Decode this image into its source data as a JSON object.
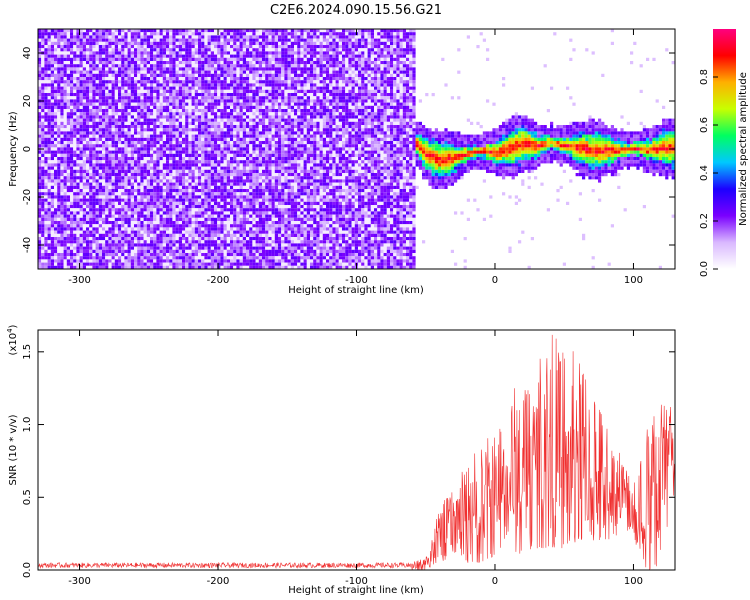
{
  "title": "C2E6.2024.090.15.56.G21",
  "chart_data": [
    {
      "type": "heatmap",
      "title": "C2E6.2024.090.15.56.G21",
      "xlabel": "Height of straight line (km)",
      "ylabel": "Frequency (Hz)",
      "xlim": [
        -330,
        130
      ],
      "ylim": [
        -50,
        50
      ],
      "xticks": [
        -300,
        -200,
        -100,
        0,
        100
      ],
      "yticks": [
        -40,
        -20,
        0,
        20,
        40
      ],
      "xtick_labels": [
        "-300",
        "-200",
        "-100",
        "0",
        "100"
      ],
      "ytick_labels": [
        "-40",
        "-20",
        "0",
        "20",
        "40"
      ],
      "noise_region_x": [
        -330,
        -59
      ],
      "grid": false,
      "colorbar": {
        "label": "Normalized spectral amplitude",
        "range": [
          0.0,
          1.0
        ],
        "ticks": [
          0.0,
          0.2,
          0.4,
          0.6,
          0.8
        ],
        "tick_labels": [
          "0.0",
          "0.2",
          "0.4",
          "0.6",
          "0.8"
        ],
        "colors": [
          "#ffffff",
          "#d9b8ff",
          "#7a00ff",
          "#1c00ff",
          "#00c8ff",
          "#00ff60",
          "#c8ff00",
          "#ffb000",
          "#ff0000",
          "#ff007f"
        ]
      },
      "ridge": {
        "x": [
          -58,
          -50,
          -40,
          -30,
          -20,
          -10,
          0,
          10,
          20,
          30,
          40,
          50,
          60,
          70,
          80,
          90,
          100,
          110,
          120,
          130
        ],
        "freq": [
          3,
          -2,
          -4,
          -3,
          -1,
          0,
          -1,
          1,
          3,
          2,
          3,
          2,
          1,
          0,
          0,
          0,
          1,
          0,
          1,
          1
        ]
      }
    },
    {
      "type": "line",
      "title": "",
      "xlabel": "Height of straight line (km)",
      "ylabel": "SNR (10 * v/v)",
      "yscale_label": "(x10",
      "yscale_exponent": "4",
      "ylabel_unit": ")",
      "xlim": [
        -330,
        130
      ],
      "ylim": [
        0,
        1.65
      ],
      "xticks": [
        -300,
        -200,
        -100,
        0,
        100
      ],
      "yticks": [
        0.0,
        0.5,
        1.0,
        1.5
      ],
      "xtick_labels": [
        "-300",
        "-200",
        "-100",
        "0",
        "100"
      ],
      "ytick_labels": [
        "0.0",
        "0.5",
        "1.0",
        "1.5"
      ],
      "grid": false,
      "series": [
        {
          "color": "#f03030",
          "envelope_x": [
            -330,
            -200,
            -60,
            -50,
            -40,
            -30,
            -20,
            -10,
            0,
            10,
            20,
            30,
            40,
            50,
            60,
            70,
            80,
            90,
            100,
            105,
            110,
            115,
            120,
            125,
            130
          ],
          "envelope_max": [
            0.05,
            0.05,
            0.05,
            0.1,
            0.45,
            0.55,
            0.75,
            0.9,
            0.95,
            1.25,
            1.3,
            1.45,
            1.65,
            1.55,
            1.5,
            1.3,
            1.05,
            0.85,
            0.75,
            0.8,
            1.0,
            1.2,
            1.35,
            1.25,
            1.0
          ],
          "envelope_min": [
            0.0,
            0.0,
            0.0,
            0.0,
            0.05,
            0.1,
            0.05,
            0.05,
            0.1,
            0.15,
            0.1,
            0.15,
            0.15,
            0.15,
            0.2,
            0.2,
            0.2,
            0.25,
            0.25,
            0.05,
            0.0,
            0.0,
            0.05,
            0.1,
            0.2
          ]
        }
      ]
    }
  ]
}
